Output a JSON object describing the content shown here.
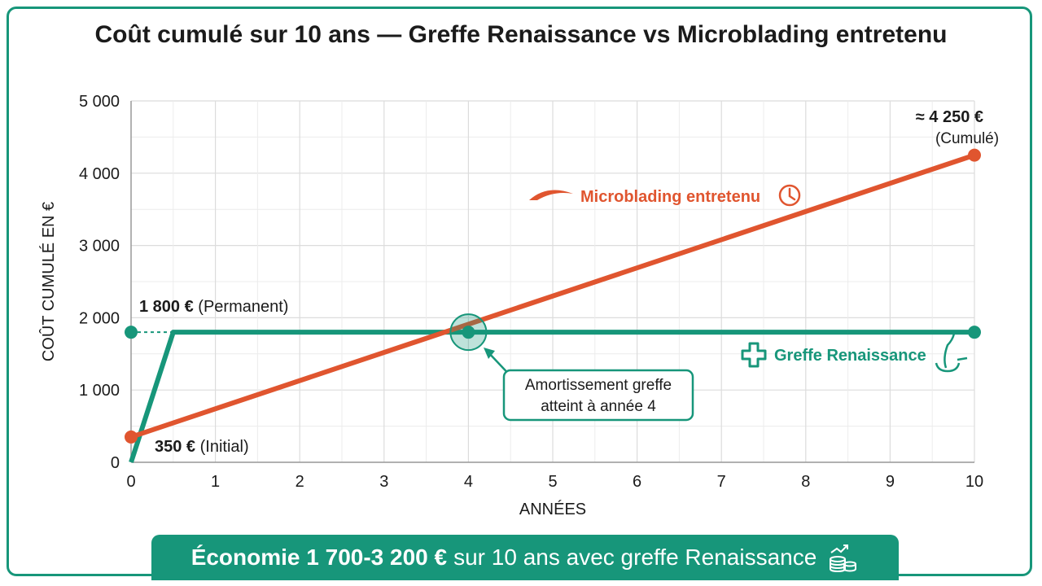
{
  "title": "Coût cumulé sur 10 ans — Greffe Renaissance vs Microblading entretenu",
  "colors": {
    "micro": "#e0552f",
    "greffe": "#17967a",
    "grid": "#dcdcdc",
    "text": "#1b1b1b"
  },
  "chart_data": {
    "type": "line",
    "xlabel": "ANNÉES",
    "ylabel": "COÛT CUMULÉ EN €",
    "xlim": [
      0,
      10
    ],
    "ylim": [
      0,
      5000
    ],
    "x_ticks": [
      "0",
      "1",
      "2",
      "3",
      "4",
      "5",
      "6",
      "7",
      "8",
      "9",
      "10"
    ],
    "y_ticks": [
      "0",
      "1 000",
      "2 000",
      "3 000",
      "4 000",
      "5 000"
    ],
    "grid": true,
    "series": [
      {
        "name": "Microblading entretenu",
        "points": [
          [
            0,
            350
          ],
          [
            10,
            4250
          ]
        ]
      },
      {
        "name": "Greffe Renaissance",
        "points": [
          [
            0,
            0
          ],
          [
            0.5,
            1800
          ],
          [
            10,
            1800
          ]
        ]
      }
    ],
    "annotations": {
      "greffe_label_bold": "1 800 €",
      "greffe_label_rest": "(Permanent)",
      "micro_start_bold": "350 €",
      "micro_start_rest": "(Initial)",
      "micro_end_bold": "≈ 4 250 €",
      "micro_end_rest": "(Cumulé)",
      "breakeven_line1": "Amortissement greffe",
      "breakeven_line2": "atteint à année 4",
      "breakeven_x": 4
    }
  },
  "banner": {
    "bold": "Économie 1 700-3 200 €",
    "rest": "sur 10 ans avec greffe Renaissance",
    "icon": "coins-growth-icon"
  }
}
